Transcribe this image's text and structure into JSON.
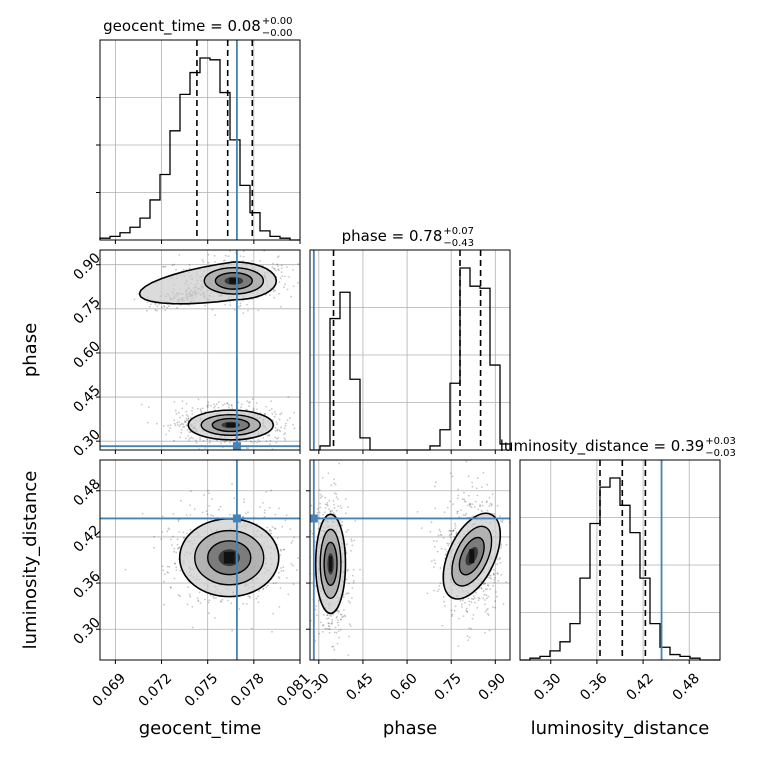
{
  "chart_data": {
    "type": "corner",
    "truth_color": "#4682b4",
    "contour_color": "#000000",
    "grid": true,
    "parameters": [
      {
        "name": "geocent_time",
        "axis_label": "geocent_time",
        "range": [
          0.068,
          0.081
        ],
        "ticks": [
          0.069,
          0.072,
          0.075,
          0.078,
          0.081
        ],
        "tick_labels": [
          "0.069",
          "0.072",
          "0.075",
          "0.078",
          "0.081"
        ],
        "truth": 0.0769,
        "quantiles": [
          0.0743,
          0.0763,
          0.0779
        ],
        "title": {
          "label": "geocent_time",
          "value": "0.08",
          "plus": "+0.00",
          "minus": "−0.00"
        },
        "histogram": {
          "edges_start": 0.068,
          "bin_width": 0.00065,
          "counts": [
            0.01,
            0.02,
            0.04,
            0.07,
            0.12,
            0.22,
            0.36,
            0.6,
            0.8,
            0.92,
            1.0,
            0.99,
            0.81,
            0.55,
            0.3,
            0.15,
            0.05,
            0.02,
            0.01,
            0.0
          ]
        }
      },
      {
        "name": "phase",
        "axis_label": "phase",
        "range": [
          0.27,
          0.95
        ],
        "ticks": [
          0.3,
          0.45,
          0.6,
          0.75,
          0.9
        ],
        "tick_labels": [
          "0.30",
          "0.45",
          "0.60",
          "0.75",
          "0.90"
        ],
        "truth": 0.283,
        "quantiles": [
          0.35,
          0.78,
          0.85
        ],
        "title": {
          "label": "phase",
          "value": "0.78",
          "plus": "+0.07",
          "minus": "−0.43"
        },
        "histogram": {
          "edges_start": 0.27,
          "bin_width": 0.034,
          "counts": [
            0.0,
            0.02,
            0.65,
            0.78,
            0.35,
            0.06,
            0.0,
            0.0,
            0.0,
            0.0,
            0.0,
            0.0,
            0.02,
            0.1,
            0.33,
            0.9,
            0.81,
            0.8,
            0.42,
            0.03
          ]
        }
      },
      {
        "name": "luminosity_distance",
        "axis_label": "luminosity_distance",
        "range": [
          0.26,
          0.52
        ],
        "ticks": [
          0.3,
          0.36,
          0.42,
          0.48
        ],
        "tick_labels": [
          "0.30",
          "0.36",
          "0.42",
          "0.48"
        ],
        "truth": 0.444,
        "quantiles": [
          0.364,
          0.393,
          0.423
        ],
        "title": {
          "label": "luminosity_distance",
          "value": "0.39",
          "plus": "+0.03",
          "minus": "−0.03"
        },
        "histogram": {
          "edges_start": 0.26,
          "bin_width": 0.013,
          "counts": [
            0.0,
            0.01,
            0.02,
            0.05,
            0.1,
            0.2,
            0.45,
            0.75,
            0.95,
            1.0,
            0.85,
            0.7,
            0.45,
            0.2,
            0.07,
            0.03,
            0.02,
            0.01,
            0.0,
            0.0
          ]
        }
      }
    ],
    "panels_2d": [
      {
        "x": "geocent_time",
        "y": "phase",
        "clusters": [
          {
            "center": [
              0.0767,
              0.845
            ],
            "spread": [
              0.0012,
              0.028
            ],
            "tail_to": [
              0.0715,
              0.765
            ]
          },
          {
            "center": [
              0.0765,
              0.355
            ],
            "spread": [
              0.0012,
              0.022
            ]
          }
        ]
      },
      {
        "x": "geocent_time",
        "y": "luminosity_distance",
        "clusters": [
          {
            "center": [
              0.0764,
              0.393
            ],
            "spread": [
              0.0014,
              0.022
            ]
          }
        ]
      },
      {
        "x": "phase",
        "y": "luminosity_distance",
        "clusters": [
          {
            "center": [
              0.34,
              0.385
            ],
            "spread": [
              0.022,
              0.028
            ]
          },
          {
            "center": [
              0.82,
              0.395
            ],
            "spread": [
              0.034,
              0.026
            ]
          }
        ]
      }
    ]
  }
}
